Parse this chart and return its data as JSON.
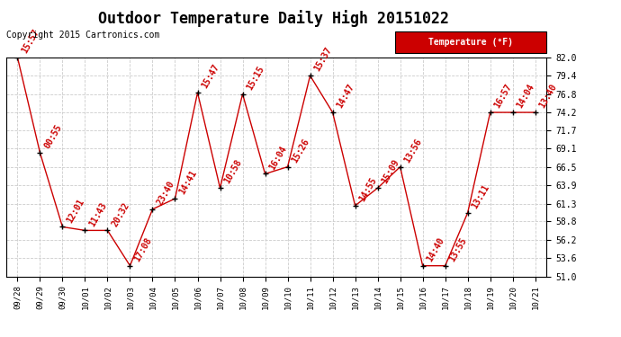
{
  "title": "Outdoor Temperature Daily High 20151022",
  "copyright_text": "Copyright 2015 Cartronics.com",
  "legend_label": "Temperature (°F)",
  "dates": [
    "09/28",
    "09/29",
    "09/30",
    "10/01",
    "10/02",
    "10/03",
    "10/04",
    "10/05",
    "10/06",
    "10/07",
    "10/08",
    "10/09",
    "10/10",
    "10/11",
    "10/12",
    "10/13",
    "10/14",
    "10/15",
    "10/16",
    "10/17",
    "10/18",
    "10/19",
    "10/20",
    "10/21"
  ],
  "temperatures": [
    82.0,
    68.5,
    58.0,
    57.5,
    57.5,
    52.5,
    60.5,
    62.0,
    77.0,
    63.5,
    76.8,
    65.5,
    66.5,
    79.4,
    74.2,
    61.0,
    63.5,
    66.5,
    52.5,
    52.5,
    60.0,
    74.2,
    74.2,
    74.2
  ],
  "time_labels": [
    "15:57",
    "00:55",
    "12:01",
    "11:43",
    "20:32",
    "17:08",
    "23:40",
    "14:41",
    "15:47",
    "10:58",
    "15:15",
    "16:04",
    "15:26",
    "15:37",
    "14:47",
    "14:55",
    "15:09",
    "13:56",
    "14:40",
    "13:55",
    "13:11",
    "16:57",
    "14:04",
    "13:40"
  ],
  "ylim": [
    51.0,
    82.0
  ],
  "yticks": [
    51.0,
    53.6,
    56.2,
    58.8,
    61.3,
    63.9,
    66.5,
    69.1,
    71.7,
    74.2,
    76.8,
    79.4,
    82.0
  ],
  "line_color": "#cc0000",
  "marker_color": "#000000",
  "label_color": "#cc0000",
  "bg_color": "#ffffff",
  "grid_color": "#cccccc",
  "title_fontsize": 12,
  "label_fontsize": 7,
  "copyright_fontsize": 7,
  "legend_bg": "#cc0000",
  "legend_text_color": "#ffffff"
}
